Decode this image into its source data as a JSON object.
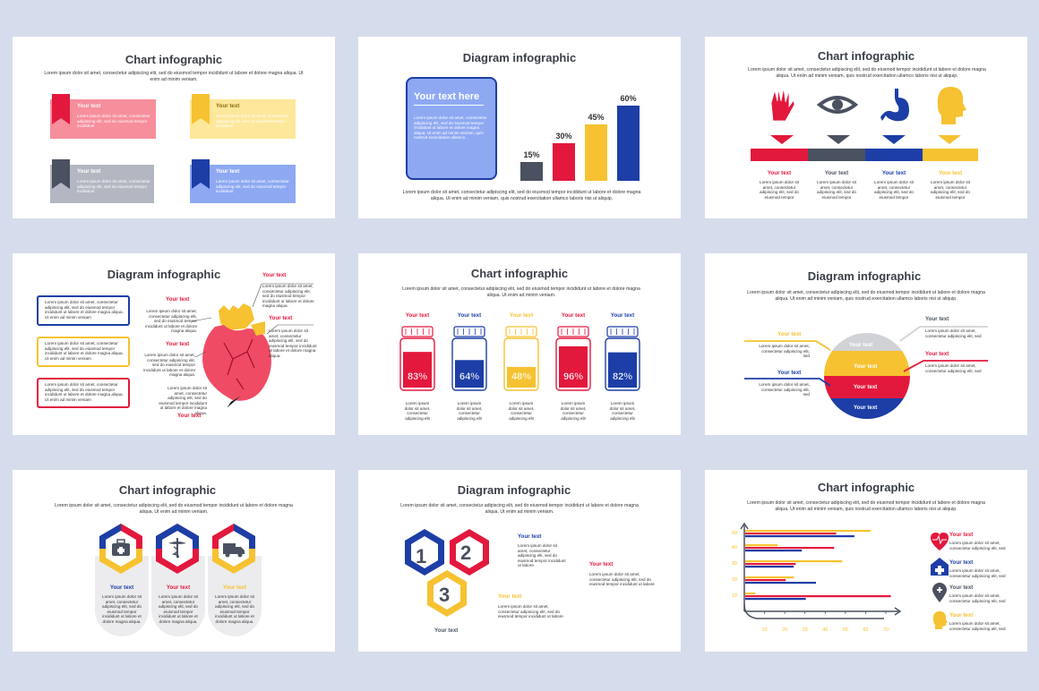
{
  "colors": {
    "red": "#e3183d",
    "blue": "#1c3ea6",
    "yellow": "#f6c231",
    "gray": "#4a5160",
    "light_blue": "#8ea9f2",
    "pink": "#f68e9c",
    "light_yellow": "#fde79a",
    "light_gray": "#b3b7c2"
  },
  "lorem_long": "Lorem ipsum dolor sit amet, consectetur adipiscing elit, sed do eiusmod tempor incididunt ut labore et dolore magna aliqua.  Ut enim ad minim veniam.",
  "lorem_short": "Lorem ipsum dolor sit amet, consectetur adipiscing elit, sed do eiusmod tempor incididunt",
  "lorem_tiny": "Lorem ipsum dolor sit amet, consectetur adipiscing elit",
  "your_text": "Your text",
  "slide1": {
    "title": "Chart infographic",
    "lorem": "Lorem ipsum dolor sit amet, consectetur adipiscing elit, sed do eiusmod tempor incididunt ut labore et dolore magna aliqua.  Ut enim ad minim veniam.",
    "box_heading": "Your text",
    "box_body": "Lorem ipsum dolor sit amet, consectetur adipiscing elit, sed do eiusmod tempor incididunt"
  },
  "slide2": {
    "title": "Diagram infographic",
    "card_title": "Your text here",
    "card_body": "Lorem ipsum dolor sit amet, consectetur adipiscing elit, sed do eiusmod tempor incididunt ut labore et dolore magna aliqua. Ut enim ad minim veniam, quis nostrud exercitation ullamco.",
    "lorem": "Lorem ipsum dolor sit amet, consectetur adipiscing elit, sed do eiusmod tempor incididunt ut labore et dolore magna aliqua.  Ut enim ad minim veniam, quis nostrud exercitation ullamco laboris nisi ut aliquip.",
    "chart_data": {
      "type": "bar",
      "categories": [
        "",
        "",
        "",
        ""
      ],
      "values": [
        15,
        30,
        45,
        60
      ],
      "value_labels": [
        "15%",
        "30%",
        "45%",
        "60%"
      ],
      "colors": [
        "#4a5160",
        "#e3183d",
        "#f6c231",
        "#1c3ea6"
      ],
      "ylim": [
        0,
        60
      ]
    }
  },
  "slide3": {
    "title": "Chart infographic",
    "lorem": "Lorem ipsum dolor sit amet, consectetur adipiscing elit, sed do eiusmod tempor incididunt ut labore et dolore magna aliqua.  Ut enim ad minim veniam, quis nostrud exercitation ullamco laboris nisi ut aliquip.",
    "item_label": "Your text",
    "item_body": "Lorem ipsum dolor sit amet, consectetur adipiscing elit, sed do eiusmod tempor",
    "icons": [
      "hand-icon",
      "eye-icon",
      "stomach-icon",
      "head-icon"
    ]
  },
  "slide4": {
    "title": "Diagram infographic",
    "box_body": "Lorem ipsum dolor sit amet, consectetur adipiscing elit, sed do eiusmod tempor incididunt ut labore et dolore magna aliqua. Ut enim ad minim veniam",
    "label": "Your text",
    "callout": "Lorem ipsum dolor sit amet, consectetur adipiscing elit, sed do eiusmod tempor incididunt ut labore et dolore magna aliqua."
  },
  "slide5": {
    "title": "Chart infographic",
    "lorem": "Lorem ipsum dolor sit amet, consectetur adipiscing elit, sed do eiusmod tempor incididunt ut labore et dolore magna aliqua.  Ut enim ad minim veniam.",
    "label": "Your text",
    "body": "Lorem ipsum dolor sit amet, consectetur adipiscing elit",
    "chart_data": {
      "type": "bar",
      "categories": [
        "",
        "",
        "",
        "",
        ""
      ],
      "values": [
        83,
        64,
        48,
        96,
        82
      ],
      "value_labels": [
        "83%",
        "64%",
        "48%",
        "96%",
        "82%"
      ],
      "colors": [
        "#e3183d",
        "#1c3ea6",
        "#f6c231",
        "#e3183d",
        "#1c3ea6"
      ],
      "ylim": [
        0,
        100
      ]
    }
  },
  "slide6": {
    "title": "Diagram infographic",
    "lorem": "Lorem ipsum dolor sit amet, consectetur adipiscing elit, sed do eiusmod tempor incididunt ut labore et dolore magna aliqua.  Ut enim ad minim veniam, quis nostrud exercitation ullamco laboris nisi ut aliquip.",
    "label": "Your text",
    "body": "Lorem ipsum dolor sit amet, consectetur adipiscing elit, sed"
  },
  "slide7": {
    "title": "Chart infographic",
    "lorem": "Lorem ipsum dolor sit amet, consectetur adipiscing elit, sed do eiusmod tempor incididunt ut labore et dolore magna aliqua.  Ut enim ad minim veniam.",
    "label": "Your text",
    "body": "Lorem ipsum dolor sit amet, consectetur adipiscing elit, sed do eiusmod tempor incididunt ut labore et dolore magna aliqua.",
    "icons": [
      "medical-kit-icon",
      "caduceus-icon",
      "ambulance-icon"
    ]
  },
  "slide8": {
    "title": "Diagram infographic",
    "lorem": "Lorem ipsum dolor sit amet, consectetur adipiscing elit, sed do eiusmod tempor incididunt ut labore et dolore magna aliqua.  Ut enim ad minim veniam.",
    "label": "Your text",
    "body": "Lorem ipsum dolor sit amet, consectetur adipiscing elit, sed do eiusmod tempor incididunt ut labore",
    "numbers": [
      "1",
      "2",
      "3"
    ]
  },
  "slide9": {
    "title": "Chart infographic",
    "lorem": "Lorem ipsum dolor sit amet, consectetur adipiscing elit, sed do eiusmod tempor incididunt ut labore et dolore magna aliqua.  Ut enim ad minim veniam, quis nostrud exercitation ullamco laboris nisi ut aliquip.",
    "label": "Your text",
    "body": "Lorem ipsum dolor sit amet, consectetur adipiscing elit, sed",
    "icons": [
      "heartbeat-icon",
      "hospital-icon",
      "location-pin-icon",
      "head-icon"
    ],
    "chart_data": {
      "type": "bar",
      "orientation": "horizontal",
      "x_ticks": [
        "10",
        "20",
        "30",
        "40",
        "50",
        "60",
        "70"
      ],
      "y_ticks": [
        "10",
        "20",
        "30",
        "40",
        "50"
      ],
      "xlim": [
        0,
        70
      ],
      "series": [
        {
          "color": "#f6c231",
          "values": [
            5,
            24,
            48,
            16,
            62
          ]
        },
        {
          "color": "#e3183d",
          "values": [
            72,
            20,
            25,
            44,
            45
          ]
        },
        {
          "color": "#1c3ea6",
          "values": [
            30,
            35,
            24,
            28,
            54
          ]
        }
      ]
    }
  }
}
